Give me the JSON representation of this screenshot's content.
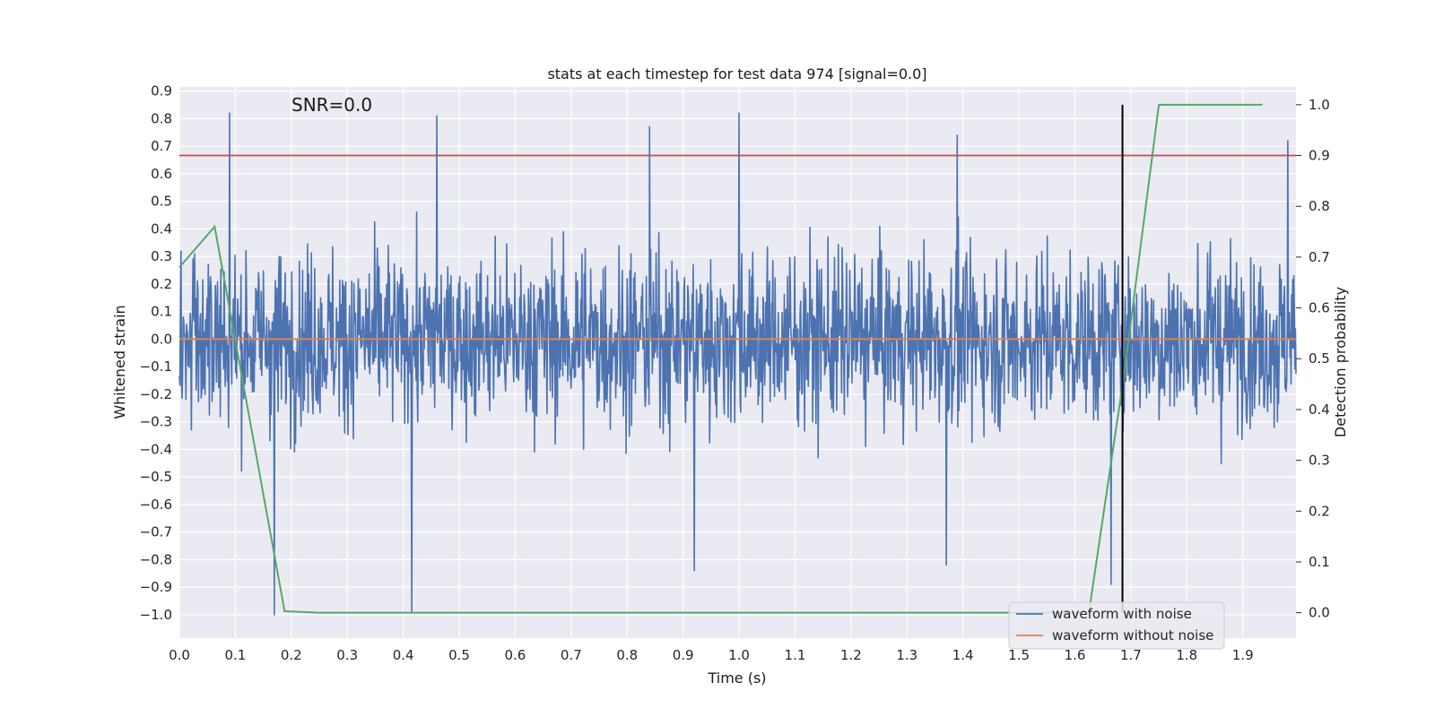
{
  "chart_data": {
    "type": "line",
    "title": "stats at each timestep for test data 974 [signal=0.0]",
    "annotation": "SNR=0.0",
    "xlabel": "Time (s)",
    "ylabel": "Whitened strain",
    "y2label": "Detection probability",
    "xlim": [
      0.0,
      1.995
    ],
    "ylim": [
      -1.085,
      0.915
    ],
    "y2lim": [
      -0.05,
      1.035
    ],
    "x_ticks": [
      "0.0",
      "0.1",
      "0.2",
      "0.3",
      "0.4",
      "0.5",
      "0.6",
      "0.7",
      "0.8",
      "0.9",
      "1.0",
      "1.1",
      "1.2",
      "1.3",
      "1.4",
      "1.5",
      "1.6",
      "1.7",
      "1.8",
      "1.9"
    ],
    "y_ticks": [
      "0.9",
      "0.8",
      "0.7",
      "0.6",
      "0.5",
      "0.4",
      "0.3",
      "0.2",
      "0.1",
      "0.0",
      "−0.1",
      "−0.2",
      "−0.3",
      "−0.4",
      "−0.5",
      "−0.6",
      "−0.7",
      "−0.8",
      "−0.9",
      "−1.0"
    ],
    "y2_ticks": [
      "1.0",
      "0.9",
      "0.8",
      "0.7",
      "0.6",
      "0.5",
      "0.4",
      "0.3",
      "0.2",
      "0.1",
      "0.0"
    ],
    "grid": true,
    "legend": {
      "placement": "lower-right",
      "entries": [
        "waveform with noise",
        "waveform without noise"
      ]
    },
    "colors": {
      "noise": "#4c72b0",
      "clean": "#dd8452",
      "probability": "#55a868",
      "threshold": "#c44e52",
      "marker": "#000000",
      "background": "#eaeaf2"
    },
    "series": [
      {
        "name": "waveform with noise",
        "axis": "left",
        "x_start": 0.0,
        "x_end": 1.995,
        "sample_count": 2048,
        "value_range": [
          -1.0,
          0.82
        ],
        "peaks": [
          {
            "x": 0.09,
            "y": 0.82
          },
          {
            "x": 1.0,
            "y": 0.82
          },
          {
            "x": 0.46,
            "y": 0.81
          },
          {
            "x": 0.84,
            "y": 0.77
          },
          {
            "x": 1.39,
            "y": 0.74
          },
          {
            "x": 1.98,
            "y": 0.72
          },
          {
            "x": 0.17,
            "y": -1.0
          },
          {
            "x": 0.415,
            "y": -0.99
          },
          {
            "x": 0.92,
            "y": -0.84
          },
          {
            "x": 1.37,
            "y": -0.82
          },
          {
            "x": 1.665,
            "y": -0.89
          }
        ]
      },
      {
        "name": "waveform without noise",
        "axis": "left",
        "x": [
          0.0,
          1.995
        ],
        "y": [
          0.0,
          0.0
        ]
      },
      {
        "axis": "right",
        "x": [
          0.0,
          0.063,
          0.188,
          0.25,
          1.625,
          1.688,
          1.75,
          1.935
        ],
        "y": [
          0.68,
          0.76,
          0.003,
          0.0,
          0.0,
          0.47,
          1.0,
          1.0
        ]
      }
    ],
    "threshold_y2": 0.9,
    "marker_x": 1.685,
    "marker_y2_range": [
      0.0,
      1.0
    ]
  }
}
